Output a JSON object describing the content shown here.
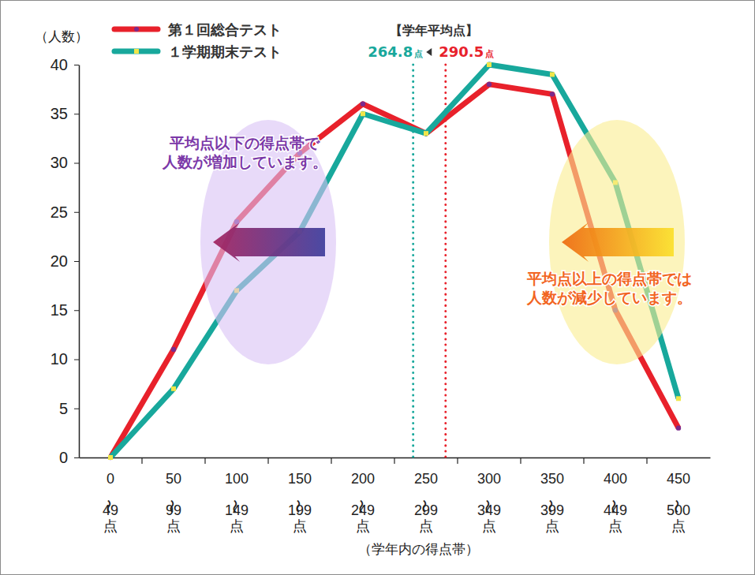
{
  "chart_data": {
    "type": "line",
    "y_label": "（人数）",
    "x_label": "（学年内の得点帯）",
    "categories": [
      "0 〜 49 点",
      "50 〜 99 点",
      "100 〜 149 点",
      "150 〜 199 点",
      "200 〜 249 点",
      "250 〜 299 点",
      "300 〜 349 点",
      "350 〜 399 点",
      "400 〜 449 点",
      "450 〜 500 点"
    ],
    "series": [
      {
        "name": "第１回総合テスト",
        "color": "#e8212b",
        "marker": "circle",
        "values": [
          0,
          11,
          24,
          31,
          36,
          33,
          38,
          37,
          15,
          3
        ]
      },
      {
        "name": "１学期期末テスト",
        "color": "#18a89c",
        "marker": "square",
        "values": [
          0,
          7,
          17,
          23,
          35,
          33,
          40,
          39,
          28,
          6
        ]
      }
    ],
    "ylim": [
      0,
      40
    ],
    "yticks": [
      0,
      5,
      10,
      15,
      20,
      25,
      30,
      35,
      40
    ],
    "xlim": [
      0,
      500
    ],
    "grid": false,
    "legend": "top-left",
    "averages": {
      "title": "【学年平均点】",
      "unit": "点",
      "lines": [
        {
          "value": 264.8,
          "color": "#18a89c"
        },
        {
          "value": 290.5,
          "color": "#e8212b"
        }
      ]
    },
    "annotations": [
      {
        "text": [
          "平均点以下の得点帯で",
          "人数が増加しています。"
        ],
        "color": "#7b38a8"
      },
      {
        "text": [
          "平均点以上の得点帯では",
          "人数が減少しています。"
        ],
        "color": "#f26522"
      }
    ]
  }
}
